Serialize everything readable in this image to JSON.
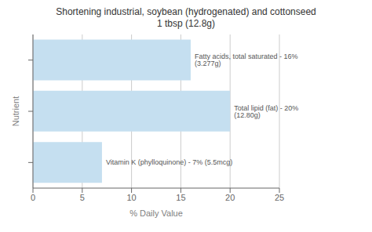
{
  "chart_data": {
    "type": "bar",
    "orientation": "horizontal",
    "title": "Shortening industrial, soybean (hydrogenated) and cottonseed",
    "subtitle": "1 tbsp (12.8g)",
    "x_label": "% Daily Value",
    "y_label": "Nutrient",
    "categories": [
      null,
      null,
      null
    ],
    "values": [
      16,
      20,
      7
    ],
    "value_labels": [
      "Fatty acids, total saturated - 16% (3.277g)",
      "Total lipid (fat) - 20% (12.80g)",
      "Vitamin K (phylloquinone) - 7% (5.5mcg)"
    ],
    "data_labels": true,
    "color": "#c5dff0",
    "xlim": [
      0,
      25
    ],
    "xticks": [
      0,
      5,
      10,
      15,
      20,
      25
    ],
    "grid": true,
    "tick_labels": "x"
  }
}
